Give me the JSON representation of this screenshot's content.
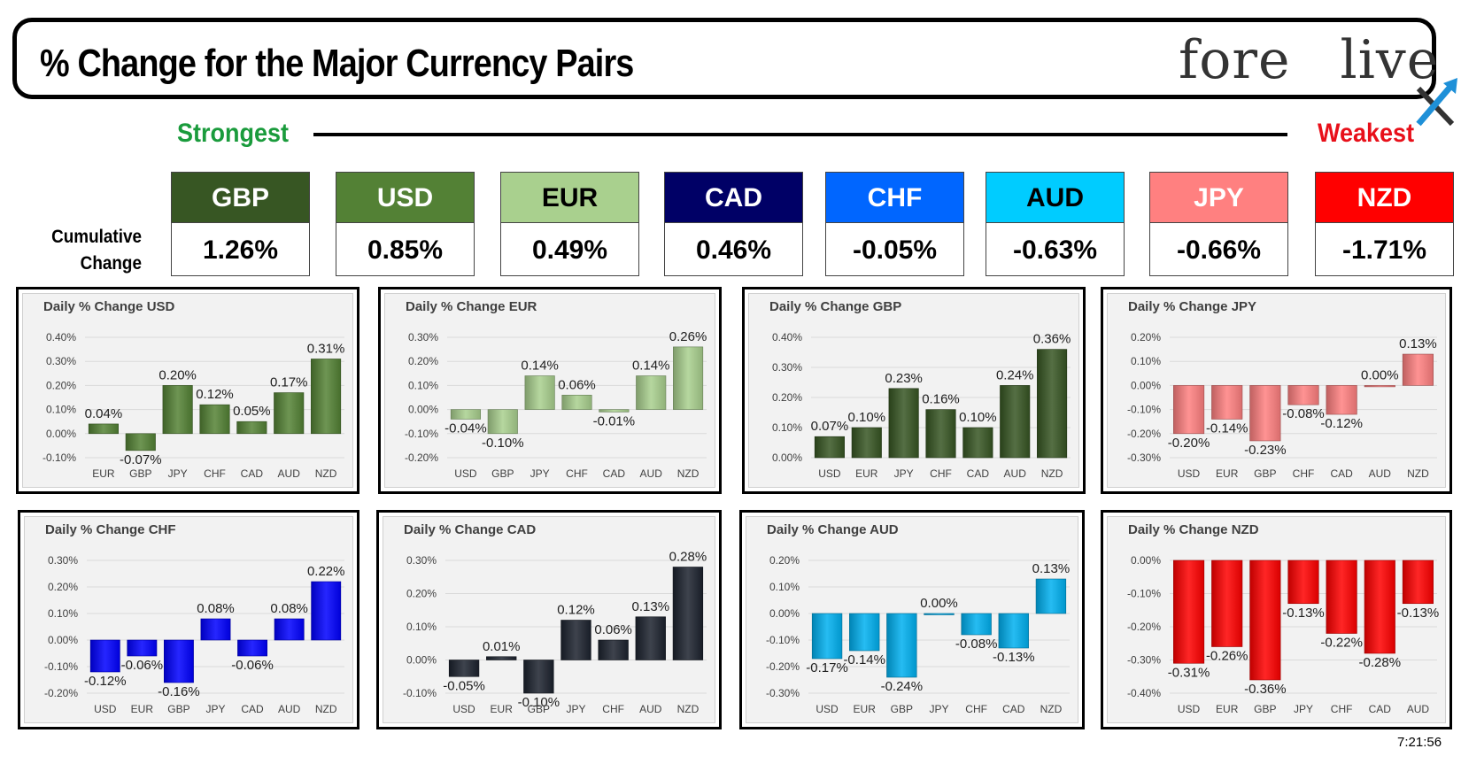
{
  "header": {
    "title": "% Change for the Major Currency Pairs",
    "logo_left": "fore",
    "logo_right": "live"
  },
  "scale": {
    "strongest": "Strongest",
    "weakest": "Weakest"
  },
  "cumulative_label_1": "Cumulative",
  "cumulative_label_2": "Change",
  "ranking": [
    {
      "code": "GBP",
      "value": "1.26%",
      "bg": "#375623",
      "fg": "#ffffff"
    },
    {
      "code": "USD",
      "value": "0.85%",
      "bg": "#538135",
      "fg": "#ffffff"
    },
    {
      "code": "EUR",
      "value": "0.49%",
      "bg": "#a9d08e",
      "fg": "#000000"
    },
    {
      "code": "CAD",
      "value": "0.46%",
      "bg": "#000066",
      "fg": "#ffffff"
    },
    {
      "code": "CHF",
      "value": "-0.05%",
      "bg": "#0066ff",
      "fg": "#ffffff"
    },
    {
      "code": "AUD",
      "value": "-0.63%",
      "bg": "#00ccff",
      "fg": "#000000"
    },
    {
      "code": "JPY",
      "value": "-0.66%",
      "bg": "#ff8080",
      "fg": "#ffffff"
    },
    {
      "code": "NZD",
      "value": "-1.71%",
      "bg": "#ff0000",
      "fg": "#ffffff"
    }
  ],
  "timestamp": "7:21:56",
  "chart_data": [
    {
      "type": "bar",
      "title": "Daily % Change USD",
      "color": "#548235",
      "categories": [
        "EUR",
        "GBP",
        "JPY",
        "CHF",
        "CAD",
        "AUD",
        "NZD"
      ],
      "values": [
        0.04,
        -0.07,
        0.2,
        0.12,
        0.05,
        0.17,
        0.31
      ],
      "labels": [
        "0.04%",
        "-0.07%",
        "0.20%",
        "0.12%",
        "0.05%",
        "0.17%",
        "0.31%"
      ],
      "ylim": [
        -0.1,
        0.4
      ],
      "yticks": [
        "-0.10%",
        "0.00%",
        "0.10%",
        "0.20%",
        "0.30%",
        "0.40%"
      ]
    },
    {
      "type": "bar",
      "title": "Daily % Change EUR",
      "color": "#a9d08e",
      "categories": [
        "USD",
        "GBP",
        "JPY",
        "CHF",
        "CAD",
        "AUD",
        "NZD"
      ],
      "values": [
        -0.04,
        -0.1,
        0.14,
        0.06,
        -0.01,
        0.14,
        0.26
      ],
      "labels": [
        "-0.04%",
        "-0.10%",
        "0.14%",
        "0.06%",
        "-0.01%",
        "0.14%",
        "0.26%"
      ],
      "ylim": [
        -0.2,
        0.3
      ],
      "yticks": [
        "-0.20%",
        "-0.10%",
        "0.00%",
        "0.10%",
        "0.20%",
        "0.30%"
      ]
    },
    {
      "type": "bar",
      "title": "Daily % Change GBP",
      "color": "#375623",
      "categories": [
        "USD",
        "EUR",
        "JPY",
        "CHF",
        "CAD",
        "AUD",
        "NZD"
      ],
      "values": [
        0.07,
        0.1,
        0.23,
        0.16,
        0.1,
        0.24,
        0.36
      ],
      "labels": [
        "0.07%",
        "0.10%",
        "0.23%",
        "0.16%",
        "0.10%",
        "0.24%",
        "0.36%"
      ],
      "ylim": [
        0.0,
        0.4
      ],
      "yticks": [
        "0.00%",
        "0.10%",
        "0.20%",
        "0.30%",
        "0.40%"
      ]
    },
    {
      "type": "bar",
      "title": "Daily % Change JPY",
      "color": "#ff8080",
      "categories": [
        "USD",
        "EUR",
        "GBP",
        "CHF",
        "CAD",
        "AUD",
        "NZD"
      ],
      "values": [
        -0.2,
        -0.14,
        -0.23,
        -0.08,
        -0.12,
        0.0,
        0.13
      ],
      "labels": [
        "-0.20%",
        "-0.14%",
        "-0.23%",
        "-0.08%",
        "-0.12%",
        "0.00%",
        "0.13%"
      ],
      "ylim": [
        -0.3,
        0.2
      ],
      "yticks": [
        "-0.30%",
        "-0.20%",
        "-0.10%",
        "0.00%",
        "0.10%",
        "0.20%"
      ]
    },
    {
      "type": "bar",
      "title": "Daily % Change CHF",
      "color": "#0000ff",
      "categories": [
        "USD",
        "EUR",
        "GBP",
        "JPY",
        "CAD",
        "AUD",
        "NZD"
      ],
      "values": [
        -0.12,
        -0.06,
        -0.16,
        0.08,
        -0.06,
        0.08,
        0.22
      ],
      "labels": [
        "-0.12%",
        "-0.06%",
        "-0.16%",
        "0.08%",
        "-0.06%",
        "0.08%",
        "0.22%"
      ],
      "ylim": [
        -0.2,
        0.3
      ],
      "yticks": [
        "-0.20%",
        "-0.10%",
        "0.00%",
        "0.10%",
        "0.20%",
        "0.30%"
      ]
    },
    {
      "type": "bar",
      "title": "Daily % Change CAD",
      "color": "#1c222e",
      "categories": [
        "USD",
        "EUR",
        "GBP",
        "JPY",
        "CHF",
        "AUD",
        "NZD"
      ],
      "values": [
        -0.05,
        0.01,
        -0.1,
        0.12,
        0.06,
        0.13,
        0.28
      ],
      "labels": [
        "-0.05%",
        "0.01%",
        "-0.10%",
        "0.12%",
        "0.06%",
        "0.13%",
        "0.28%"
      ],
      "ylim": [
        -0.1,
        0.3
      ],
      "yticks": [
        "-0.10%",
        "0.00%",
        "0.10%",
        "0.20%",
        "0.30%"
      ]
    },
    {
      "type": "bar",
      "title": "Daily % Change AUD",
      "color": "#00b0f0",
      "categories": [
        "USD",
        "EUR",
        "GBP",
        "JPY",
        "CHF",
        "CAD",
        "NZD"
      ],
      "values": [
        -0.17,
        -0.14,
        -0.24,
        0.0,
        -0.08,
        -0.13,
        0.13
      ],
      "labels": [
        "-0.17%",
        "-0.14%",
        "-0.24%",
        "0.00%",
        "-0.08%",
        "-0.13%",
        "0.13%"
      ],
      "ylim": [
        -0.3,
        0.2
      ],
      "yticks": [
        "-0.30%",
        "-0.20%",
        "-0.10%",
        "0.00%",
        "0.10%",
        "0.20%"
      ]
    },
    {
      "type": "bar",
      "title": "Daily % Change NZD",
      "color": "#ff0000",
      "categories": [
        "USD",
        "EUR",
        "GBP",
        "JPY",
        "CHF",
        "CAD",
        "AUD"
      ],
      "values": [
        -0.31,
        -0.26,
        -0.36,
        -0.13,
        -0.22,
        -0.28,
        -0.13
      ],
      "labels": [
        "-0.31%",
        "-0.26%",
        "-0.36%",
        "-0.13%",
        "-0.22%",
        "-0.28%",
        "-0.13%"
      ],
      "ylim": [
        -0.4,
        0.0
      ],
      "yticks": [
        "-0.40%",
        "-0.30%",
        "-0.20%",
        "-0.10%",
        "0.00%"
      ]
    }
  ]
}
